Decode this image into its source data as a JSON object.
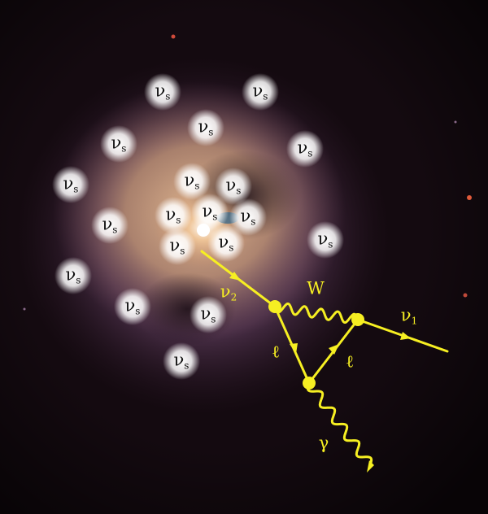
{
  "image": {
    "subject": "galaxy-cluster-core",
    "colors": {
      "background": "#0c0608",
      "halo_outer": "#5a3a58",
      "halo_inner": "#c79a78",
      "core": "#f2c89a",
      "core_bright": "#ffffff",
      "glow": "#ffffff",
      "diagram": "#f6ef22"
    }
  },
  "particle_labels": {
    "symbol": "ν",
    "subscript": "s",
    "count": 21
  },
  "diagram": {
    "incoming_neutrino": {
      "symbol": "ν",
      "subscript": "2"
    },
    "outgoing_neutrino": {
      "symbol": "ν",
      "subscript": "1"
    },
    "boson": "W",
    "lepton_left": "ℓ",
    "lepton_right": "ℓ",
    "photon": "γ"
  }
}
